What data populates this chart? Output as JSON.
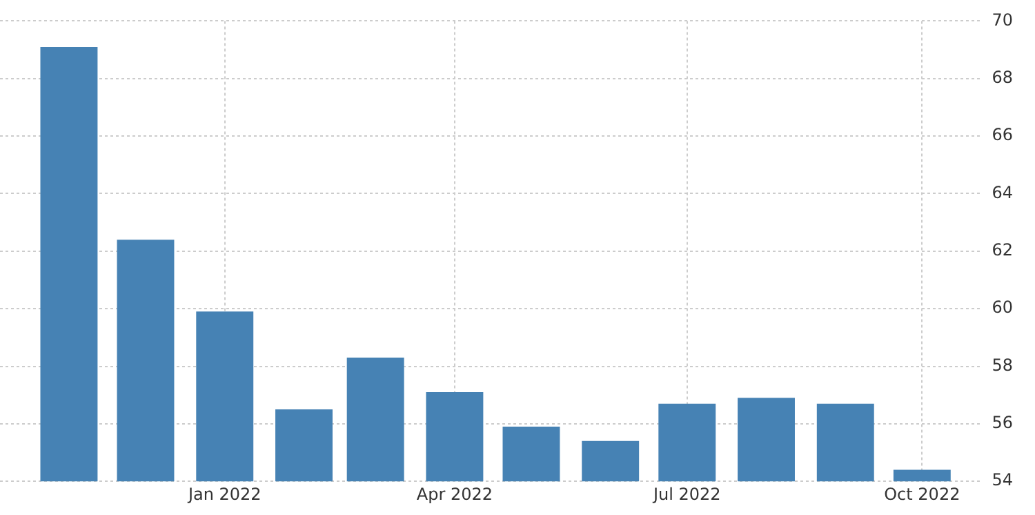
{
  "chart_data": {
    "type": "bar",
    "x": [
      "2021-11",
      "2021-12",
      "2022-01",
      "2022-02",
      "2022-03",
      "2022-04",
      "2022-05",
      "2022-06",
      "2022-07",
      "2022-08",
      "2022-09",
      "2022-10"
    ],
    "values": [
      69.1,
      62.4,
      59.9,
      56.5,
      58.3,
      57.1,
      55.9,
      55.4,
      56.7,
      56.9,
      56.7,
      54.4
    ],
    "color": "#4682b4",
    "xlim": [
      "2021-10-05",
      "2022-10-24"
    ],
    "xticks": [
      {
        "value": "2022-01",
        "label": "Jan 2022"
      },
      {
        "value": "2022-04",
        "label": "Apr 2022"
      },
      {
        "value": "2022-07",
        "label": "Jul 2022"
      },
      {
        "value": "2022-10",
        "label": "Oct 2022"
      }
    ],
    "ylim": [
      54,
      70
    ],
    "yticks": [
      54,
      56,
      58,
      60,
      62,
      64,
      66,
      68,
      70
    ],
    "grid": true,
    "legend": false
  }
}
